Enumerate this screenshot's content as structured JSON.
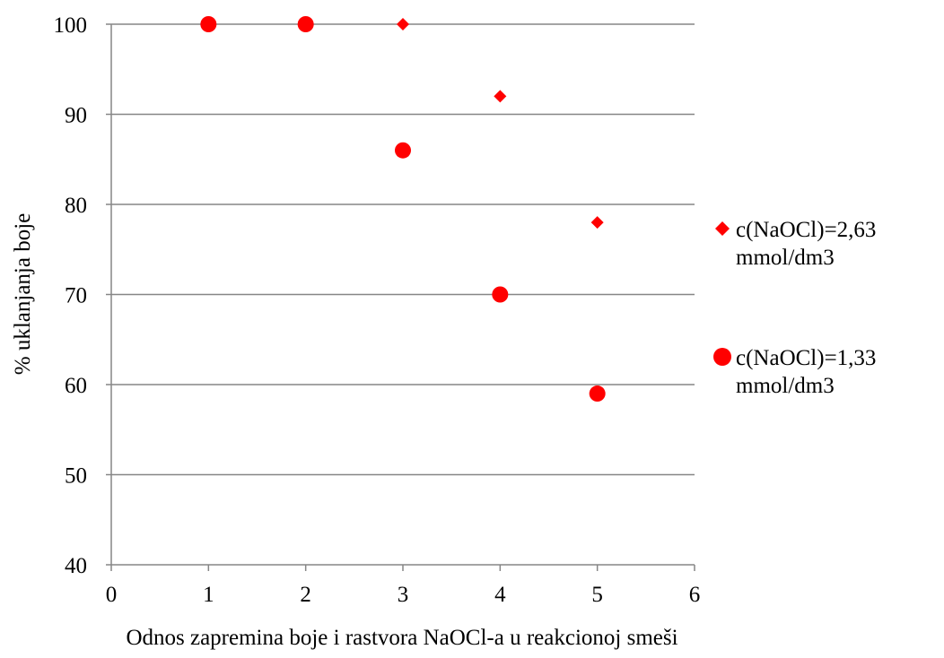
{
  "chart_data": {
    "type": "scatter",
    "title": "",
    "xlabel": "Odnos zapremina boje i rastvora NaOCl-a u reakcionoj smeši",
    "ylabel": "% uklanjanja boje",
    "xlim": [
      0,
      6
    ],
    "ylim": [
      40,
      100
    ],
    "x_ticks": [
      0,
      1,
      2,
      3,
      4,
      5,
      6
    ],
    "y_ticks": [
      40,
      50,
      60,
      70,
      80,
      90,
      100
    ],
    "grid": "horizontal",
    "legend_position": "right",
    "series": [
      {
        "name": "c(NaOCl)=2,63 mmol/dm3",
        "name_lines": [
          "c(NaOCl)=2,63",
          "mmol/dm3"
        ],
        "marker": "diamond",
        "color": "#ff0000",
        "x": [
          3,
          4,
          5
        ],
        "y": [
          100,
          92,
          78
        ]
      },
      {
        "name": "c(NaOCl)=1,33 mmol/dm3",
        "name_lines": [
          "c(NaOCl)=1,33",
          "mmol/dm3"
        ],
        "marker": "circle",
        "color": "#ff0000",
        "x": [
          1,
          2,
          3,
          4,
          5
        ],
        "y": [
          100,
          100,
          86,
          70,
          59
        ]
      }
    ],
    "gridline_color": "#868686",
    "axis_color": "#868686"
  }
}
